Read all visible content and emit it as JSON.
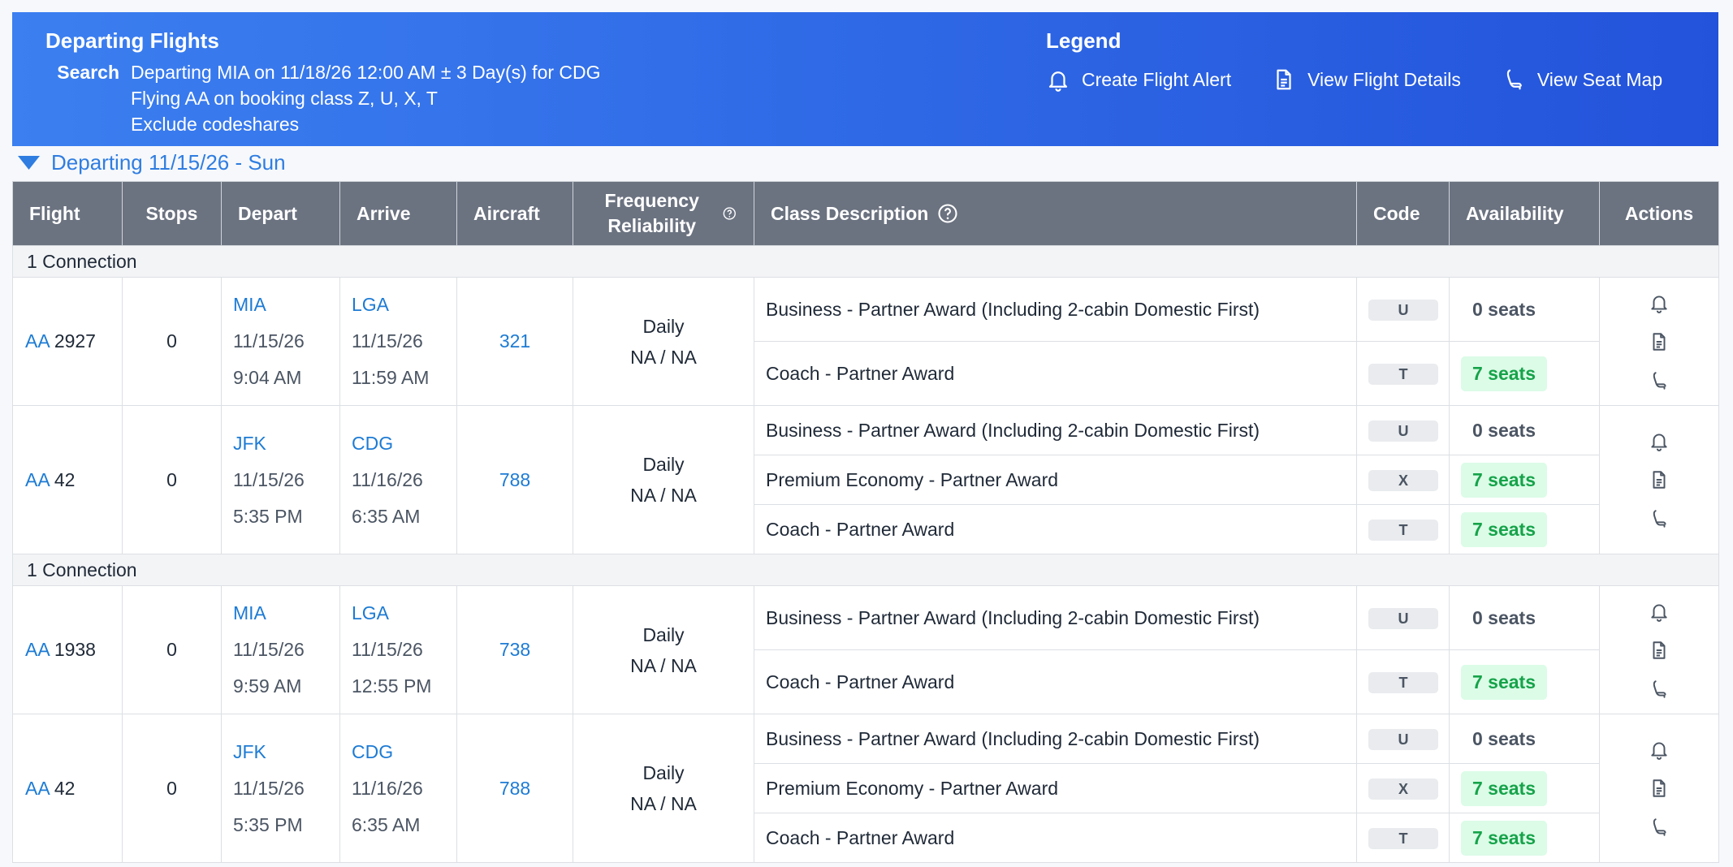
{
  "header": {
    "title": "Departing Flights",
    "search_label": "Search",
    "search_lines": [
      "Departing MIA on 11/18/26 12:00 AM ± 3 Day(s) for CDG",
      "Flying AA on booking class Z, U, X, T",
      "Exclude codeshares"
    ]
  },
  "legend": {
    "title": "Legend",
    "items": [
      "Create Flight Alert",
      "View Flight Details",
      "View Seat Map"
    ]
  },
  "section": "Departing 11/15/26 - Sun",
  "table": {
    "columns": [
      "Flight",
      "Stops",
      "Depart",
      "Arrive",
      "Aircraft",
      "Frequency Reliability",
      "Class Description",
      "Code",
      "Availability",
      "Actions"
    ],
    "groups": [
      {
        "label": "1 Connection",
        "flights": [
          {
            "airline": "AA",
            "number": "2927",
            "stops": "0",
            "depart": {
              "airport": "MIA",
              "date": "11/15/26",
              "time": "9:04 AM"
            },
            "arrive": {
              "airport": "LGA",
              "date": "11/15/26",
              "time": "11:59 AM"
            },
            "aircraft": "321",
            "frequency": "Daily",
            "reliability": "NA / NA",
            "classes": [
              {
                "description": "Business - Partner Award (Including 2-cabin Domestic First)",
                "code": "U",
                "availability": "0 seats"
              },
              {
                "description": "Coach - Partner Award",
                "code": "T",
                "availability": "7 seats"
              }
            ]
          },
          {
            "airline": "AA",
            "number": "42",
            "stops": "0",
            "depart": {
              "airport": "JFK",
              "date": "11/15/26",
              "time": "5:35 PM"
            },
            "arrive": {
              "airport": "CDG",
              "date": "11/16/26",
              "time": "6:35 AM"
            },
            "aircraft": "788",
            "frequency": "Daily",
            "reliability": "NA / NA",
            "classes": [
              {
                "description": "Business - Partner Award (Including 2-cabin Domestic First)",
                "code": "U",
                "availability": "0 seats"
              },
              {
                "description": "Premium Economy - Partner Award",
                "code": "X",
                "availability": "7 seats"
              },
              {
                "description": "Coach - Partner Award",
                "code": "T",
                "availability": "7 seats"
              }
            ]
          }
        ]
      },
      {
        "label": "1 Connection",
        "flights": [
          {
            "airline": "AA",
            "number": "1938",
            "stops": "0",
            "depart": {
              "airport": "MIA",
              "date": "11/15/26",
              "time": "9:59 AM"
            },
            "arrive": {
              "airport": "LGA",
              "date": "11/15/26",
              "time": "12:55 PM"
            },
            "aircraft": "738",
            "frequency": "Daily",
            "reliability": "NA / NA",
            "classes": [
              {
                "description": "Business - Partner Award (Including 2-cabin Domestic First)",
                "code": "U",
                "availability": "0 seats"
              },
              {
                "description": "Coach - Partner Award",
                "code": "T",
                "availability": "7 seats"
              }
            ]
          },
          {
            "airline": "AA",
            "number": "42",
            "stops": "0",
            "depart": {
              "airport": "JFK",
              "date": "11/15/26",
              "time": "5:35 PM"
            },
            "arrive": {
              "airport": "CDG",
              "date": "11/16/26",
              "time": "6:35 AM"
            },
            "aircraft": "788",
            "frequency": "Daily",
            "reliability": "NA / NA",
            "classes": [
              {
                "description": "Business - Partner Award (Including 2-cabin Domestic First)",
                "code": "U",
                "availability": "0 seats"
              },
              {
                "description": "Premium Economy - Partner Award",
                "code": "X",
                "availability": "7 seats"
              },
              {
                "description": "Coach - Partner Award",
                "code": "T",
                "availability": "7 seats"
              }
            ]
          }
        ]
      }
    ]
  }
}
